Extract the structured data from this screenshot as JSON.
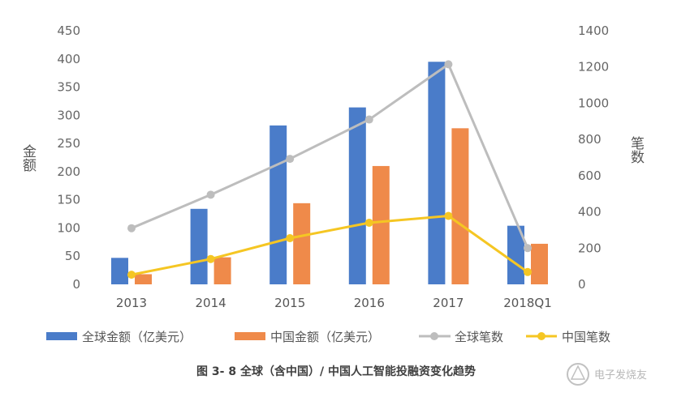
{
  "chart_data": {
    "type": "bar",
    "categories": [
      "2013",
      "2014",
      "2015",
      "2016",
      "2017",
      "2018Q1"
    ],
    "series": [
      {
        "name": "全球金额（亿美元）",
        "kind": "bar",
        "axis": "left",
        "color": "#4A7CC9",
        "values": [
          47,
          134,
          282,
          314,
          395,
          104
        ]
      },
      {
        "name": "中国金额（亿美元）",
        "kind": "bar",
        "axis": "left",
        "color": "#EF8A4A",
        "values": [
          18,
          48,
          144,
          210,
          277,
          72
        ]
      },
      {
        "name": "全球笔数",
        "kind": "line",
        "axis": "right",
        "color": "#BDBDBD",
        "values": [
          310,
          495,
          693,
          910,
          1215,
          200
        ]
      },
      {
        "name": "中国笔数",
        "kind": "line",
        "axis": "right",
        "color": "#F5C623",
        "values": [
          53,
          140,
          255,
          340,
          378,
          68
        ]
      }
    ],
    "left_axis": {
      "label": "金额",
      "min": 0,
      "max": 450,
      "ticks": [
        "0",
        "50",
        "100",
        "150",
        "200",
        "250",
        "300",
        "350",
        "400",
        "450"
      ]
    },
    "right_axis": {
      "label": "笔数",
      "min": 0,
      "max": 1400,
      "ticks": [
        "0",
        "200",
        "400",
        "600",
        "800",
        "1000",
        "1200",
        "1400"
      ]
    },
    "grid": false,
    "legend_position": "bottom"
  },
  "caption": "图 3- 8 全球（含中国）/ 中国人工智能投融资变化趋势",
  "watermark": "电子发烧友"
}
